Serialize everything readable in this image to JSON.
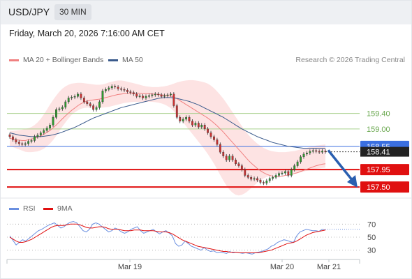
{
  "header": {
    "symbol": "USD/JPY",
    "interval": "30 MIN"
  },
  "datetime": "Friday, March 20, 2026 7:16:00 AM CET",
  "legend": {
    "ma20": "MA 20 + Bollinger Bands",
    "ma50": "MA 50",
    "credit": "Research © 2026 Trading Central"
  },
  "rsi_legend": {
    "rsi": "RSI",
    "ma": "9MA"
  },
  "colors": {
    "ma20": "#f08080",
    "ma50": "#3a5a8c",
    "band_fill": "#fde0e0",
    "up": "#2e9e2e",
    "down": "#d03030",
    "resistance": "#a8d08d",
    "blue_level": "#3b6fe0",
    "support": "#e01010",
    "rsi": "#6a8fe0",
    "rsi_ma": "#e01010"
  },
  "chart_data": [
    {
      "type": "candlestick",
      "title": "USD/JPY 30 MIN",
      "x_tick_labels": [
        "Mar 19",
        "Mar 20",
        "Mar 21"
      ],
      "ylim": [
        157.25,
        160.6
      ],
      "levels": [
        {
          "value": 159.4,
          "label": "159.40",
          "kind": "resistance"
        },
        {
          "value": 159.0,
          "label": "159.00",
          "kind": "resistance"
        },
        {
          "value": 158.55,
          "label": "158.55",
          "kind": "pivot"
        },
        {
          "value": 157.95,
          "label": "157.95",
          "kind": "support"
        },
        {
          "value": 157.5,
          "label": "157.50",
          "kind": "support"
        }
      ],
      "last_price": {
        "value": 158.41,
        "label": "158.41"
      },
      "projection": {
        "from": 158.45,
        "to": 157.52
      },
      "closes": [
        158.8,
        158.72,
        158.66,
        158.62,
        158.6,
        158.62,
        158.68,
        158.7,
        158.8,
        158.84,
        158.9,
        158.96,
        159.02,
        159.1,
        159.3,
        159.5,
        159.52,
        159.56,
        159.7,
        159.8,
        159.82,
        159.84,
        159.9,
        159.8,
        159.7,
        159.65,
        159.6,
        159.5,
        159.55,
        159.7,
        159.98,
        160.02,
        160.06,
        160.1,
        160.08,
        160.04,
        160.02,
        160.0,
        159.96,
        159.94,
        159.9,
        159.84,
        159.85,
        159.8,
        159.84,
        159.86,
        159.88,
        159.9,
        159.88,
        159.84,
        159.86,
        159.88,
        159.9,
        159.6,
        159.3,
        159.2,
        159.25,
        159.3,
        159.2,
        159.1,
        159.15,
        159.05,
        159.1,
        159.0,
        158.9,
        158.8,
        158.72,
        158.6,
        158.4,
        158.3,
        158.2,
        158.3,
        158.2,
        158.1,
        158.05,
        157.95,
        157.8,
        157.75,
        157.7,
        157.72,
        157.68,
        157.62,
        157.6,
        157.66,
        157.72,
        157.75,
        157.8,
        157.85,
        157.86,
        157.9,
        157.8,
        157.95,
        158.05,
        158.15,
        158.28,
        158.35,
        158.38,
        158.42,
        158.44,
        158.42,
        158.4,
        158.43,
        158.41
      ],
      "ma20": [
        158.76,
        158.74,
        158.72,
        158.71,
        158.7,
        158.7,
        158.72,
        158.74,
        158.76,
        158.79,
        158.82,
        158.86,
        158.91,
        158.96,
        159.03,
        159.1,
        159.18,
        159.26,
        159.34,
        159.41,
        159.48,
        159.54,
        159.6,
        159.65,
        159.69,
        159.72,
        159.74,
        159.75,
        159.76,
        159.77,
        159.79,
        159.81,
        159.83,
        159.85,
        159.87,
        159.89,
        159.9,
        159.91,
        159.92,
        159.92,
        159.92,
        159.92,
        159.92,
        159.91,
        159.91,
        159.91,
        159.9,
        159.9,
        159.89,
        159.88,
        159.87,
        159.86,
        159.85,
        159.82,
        159.78,
        159.73,
        159.68,
        159.63,
        159.58,
        159.53,
        159.48,
        159.43,
        159.38,
        159.33,
        159.28,
        159.22,
        159.15,
        159.08,
        159.0,
        158.92,
        158.83,
        158.74,
        158.65,
        158.56,
        158.47,
        158.38,
        158.29,
        158.2,
        158.12,
        158.05,
        157.98,
        157.92,
        157.87,
        157.83,
        157.8,
        157.78,
        157.77,
        157.77,
        157.78,
        157.8,
        157.81,
        157.83,
        157.85,
        157.87,
        157.9,
        157.93,
        157.96,
        157.99,
        158.02,
        158.05,
        158.07,
        158.09,
        158.1
      ],
      "band_upper": [
        158.95,
        158.95,
        158.96,
        158.97,
        158.98,
        159.0,
        159.02,
        159.05,
        159.1,
        159.17,
        159.26,
        159.37,
        159.5,
        159.63,
        159.75,
        159.86,
        159.96,
        160.04,
        160.1,
        160.14,
        160.17,
        160.18,
        160.19,
        160.19,
        160.18,
        160.17,
        160.16,
        160.15,
        160.14,
        160.14,
        160.15,
        160.17,
        160.2,
        160.22,
        160.24,
        160.25,
        160.25,
        160.24,
        160.22,
        160.2,
        160.18,
        160.16,
        160.14,
        160.12,
        160.1,
        160.09,
        160.08,
        160.08,
        160.08,
        160.09,
        160.1,
        160.12,
        160.14,
        160.17,
        160.2,
        160.22,
        160.24,
        160.25,
        160.26,
        160.26,
        160.25,
        160.24,
        160.22,
        160.2,
        160.17,
        160.12,
        160.05,
        159.97,
        159.88,
        159.78,
        159.67,
        159.55,
        159.43,
        159.31,
        159.19,
        159.07,
        158.96,
        158.86,
        158.77,
        158.69,
        158.62,
        158.56,
        158.51,
        158.47,
        158.44,
        158.42,
        158.41,
        158.4,
        158.4,
        158.4,
        158.41,
        158.42,
        158.43,
        158.45,
        158.47,
        158.49,
        158.51,
        158.53,
        158.55,
        158.57,
        158.58,
        158.59,
        158.6
      ],
      "band_lower": [
        158.55,
        158.53,
        158.5,
        158.47,
        158.44,
        158.41,
        158.4,
        158.4,
        158.41,
        158.42,
        158.45,
        158.49,
        158.55,
        158.62,
        158.71,
        158.82,
        158.94,
        159.06,
        159.17,
        159.27,
        159.36,
        159.43,
        159.48,
        159.52,
        159.54,
        159.55,
        159.55,
        159.55,
        159.55,
        159.55,
        159.55,
        159.56,
        159.57,
        159.59,
        159.61,
        159.63,
        159.65,
        159.67,
        159.68,
        159.69,
        159.7,
        159.7,
        159.7,
        159.7,
        159.7,
        159.7,
        159.7,
        159.69,
        159.68,
        159.66,
        159.63,
        159.59,
        159.54,
        159.46,
        159.37,
        159.27,
        159.17,
        159.07,
        158.97,
        158.87,
        158.77,
        158.67,
        158.57,
        158.46,
        158.35,
        158.23,
        158.1,
        157.96,
        157.81,
        157.67,
        157.54,
        157.43,
        157.35,
        157.3,
        157.28,
        157.3,
        157.34,
        157.4,
        157.47,
        157.54,
        157.61,
        157.67,
        157.72,
        157.76,
        157.79,
        157.81,
        157.83,
        157.84,
        157.85,
        157.86,
        157.86,
        157.86,
        157.86,
        157.87,
        157.88,
        157.9,
        157.92,
        157.94,
        157.96,
        157.97,
        157.98,
        157.99,
        158.0
      ],
      "ma50": [
        158.9,
        158.88,
        158.86,
        158.84,
        158.83,
        158.82,
        158.81,
        158.8,
        158.8,
        158.8,
        158.8,
        158.81,
        158.82,
        158.83,
        158.85,
        158.87,
        158.89,
        158.92,
        158.95,
        158.98,
        159.01,
        159.04,
        159.08,
        159.12,
        159.16,
        159.2,
        159.24,
        159.28,
        159.31,
        159.34,
        159.37,
        159.4,
        159.43,
        159.46,
        159.49,
        159.52,
        159.55,
        159.57,
        159.59,
        159.61,
        159.63,
        159.65,
        159.67,
        159.69,
        159.71,
        159.73,
        159.75,
        159.77,
        159.79,
        159.8,
        159.81,
        159.81,
        159.81,
        159.8,
        159.79,
        159.77,
        159.75,
        159.73,
        159.71,
        159.68,
        159.65,
        159.62,
        159.58,
        159.54,
        159.5,
        159.46,
        159.42,
        159.38,
        159.34,
        159.3,
        159.25,
        159.2,
        159.15,
        159.1,
        159.05,
        159.0,
        158.96,
        158.92,
        158.88,
        158.84,
        158.8,
        158.77,
        158.74,
        158.71,
        158.68,
        158.65,
        158.63,
        158.61,
        158.59,
        158.57,
        158.55,
        158.54,
        158.53,
        158.52,
        158.51,
        158.5,
        158.5,
        158.5,
        158.5,
        158.5,
        158.5,
        158.5,
        158.5
      ]
    },
    {
      "type": "line",
      "title": "RSI",
      "ylim": [
        20,
        80
      ],
      "y_tick_labels": [
        "70",
        "50",
        "30"
      ],
      "y_ticks": [
        70,
        50,
        30
      ],
      "series": [
        {
          "name": "RSI",
          "values": [
            52,
            45,
            38,
            42,
            46,
            44,
            48,
            52,
            56,
            60,
            62,
            65,
            68,
            70,
            72,
            68,
            64,
            66,
            70,
            73,
            74,
            72,
            66,
            60,
            58,
            62,
            70,
            72,
            70,
            66,
            62,
            58,
            60,
            64,
            62,
            58,
            56,
            58,
            62,
            64,
            66,
            60,
            56,
            58,
            60,
            62,
            58,
            55,
            58,
            60,
            56,
            52,
            40,
            36,
            38,
            44,
            40,
            36,
            34,
            32,
            30,
            34,
            30,
            28,
            29,
            26,
            27,
            26,
            25,
            28,
            26,
            27,
            26,
            25,
            26,
            25,
            24,
            26,
            27,
            28,
            30,
            32,
            36,
            38,
            42,
            44,
            46,
            45,
            43,
            42,
            52,
            58,
            60,
            62,
            61,
            60,
            60,
            59,
            62,
            61
          ]
        },
        {
          "name": "9MA",
          "values": [
            50,
            47,
            44,
            42,
            42,
            43,
            45,
            47,
            50,
            53,
            56,
            59,
            62,
            65,
            67,
            68,
            68,
            68,
            69,
            70,
            70,
            70,
            69,
            67,
            65,
            64,
            64,
            65,
            66,
            66,
            65,
            63,
            62,
            62,
            62,
            61,
            60,
            60,
            60,
            61,
            61,
            61,
            60,
            60,
            60,
            60,
            59,
            58,
            58,
            58,
            57,
            55,
            52,
            49,
            46,
            44,
            42,
            40,
            38,
            36,
            35,
            34,
            33,
            32,
            31,
            30,
            29,
            28,
            28,
            27,
            27,
            27,
            26,
            26,
            26,
            26,
            26,
            26,
            26,
            27,
            28,
            29,
            30,
            32,
            34,
            36,
            38,
            40,
            41,
            42,
            44,
            47,
            50,
            53,
            55,
            57,
            58,
            59,
            60,
            61
          ]
        }
      ],
      "reference_value": 62,
      "x_tick_labels": [
        "Mar 19",
        "Mar 20",
        "Mar 21"
      ]
    }
  ]
}
